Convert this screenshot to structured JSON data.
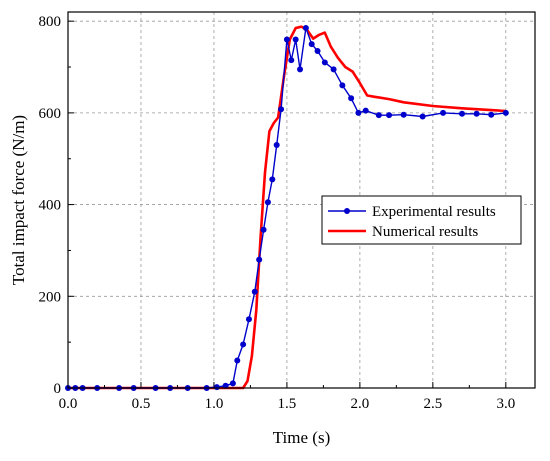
{
  "chart_data": {
    "type": "line",
    "title": "",
    "xlabel": "Time (s)",
    "ylabel": "Total impact force (N/m)",
    "xlim": [
      0.0,
      3.2
    ],
    "ylim": [
      0,
      820
    ],
    "xticks": [
      0.0,
      0.5,
      1.0,
      1.5,
      2.0,
      2.5,
      3.0
    ],
    "xtick_labels": [
      "0.0",
      "0.5",
      "1.0",
      "1.5",
      "2.0",
      "2.5",
      "3.0"
    ],
    "yticks": [
      0,
      200,
      400,
      600,
      800
    ],
    "ytick_labels": [
      "0",
      "200",
      "400",
      "600",
      "800"
    ],
    "grid": true,
    "legend_position": "right-middle",
    "series": [
      {
        "name": "Experimental results",
        "color": "#0000cc",
        "marker": "circle",
        "x": [
          0.0,
          0.05,
          0.1,
          0.2,
          0.35,
          0.45,
          0.6,
          0.7,
          0.82,
          0.95,
          1.02,
          1.08,
          1.13,
          1.16,
          1.2,
          1.24,
          1.28,
          1.31,
          1.34,
          1.37,
          1.4,
          1.43,
          1.46,
          1.5,
          1.53,
          1.56,
          1.59,
          1.63,
          1.67,
          1.71,
          1.76,
          1.82,
          1.88,
          1.94,
          1.99,
          2.04,
          2.13,
          2.2,
          2.3,
          2.43,
          2.57,
          2.7,
          2.8,
          2.9,
          3.0
        ],
        "y": [
          0,
          0,
          0,
          0,
          0,
          0,
          0,
          0,
          0,
          0,
          2,
          5,
          10,
          60,
          95,
          150,
          210,
          280,
          345,
          405,
          455,
          530,
          608,
          760,
          715,
          760,
          695,
          785,
          750,
          735,
          710,
          695,
          660,
          632,
          600,
          605,
          595,
          595,
          596,
          592,
          600,
          598,
          598,
          596,
          600
        ]
      },
      {
        "name": "Numerical results",
        "color": "#ff0000",
        "marker": "none",
        "x": [
          0.0,
          1.2,
          1.23,
          1.26,
          1.29,
          1.32,
          1.35,
          1.38,
          1.41,
          1.44,
          1.48,
          1.52,
          1.56,
          1.6,
          1.64,
          1.68,
          1.72,
          1.76,
          1.8,
          1.85,
          1.9,
          1.95,
          2.0,
          2.05,
          2.1,
          2.2,
          2.3,
          2.5,
          2.7,
          2.9,
          3.0
        ],
        "y": [
          0,
          0,
          15,
          70,
          170,
          330,
          470,
          560,
          578,
          590,
          680,
          760,
          785,
          788,
          780,
          762,
          770,
          775,
          745,
          720,
          700,
          690,
          665,
          638,
          635,
          630,
          623,
          615,
          610,
          606,
          604
        ]
      }
    ]
  }
}
